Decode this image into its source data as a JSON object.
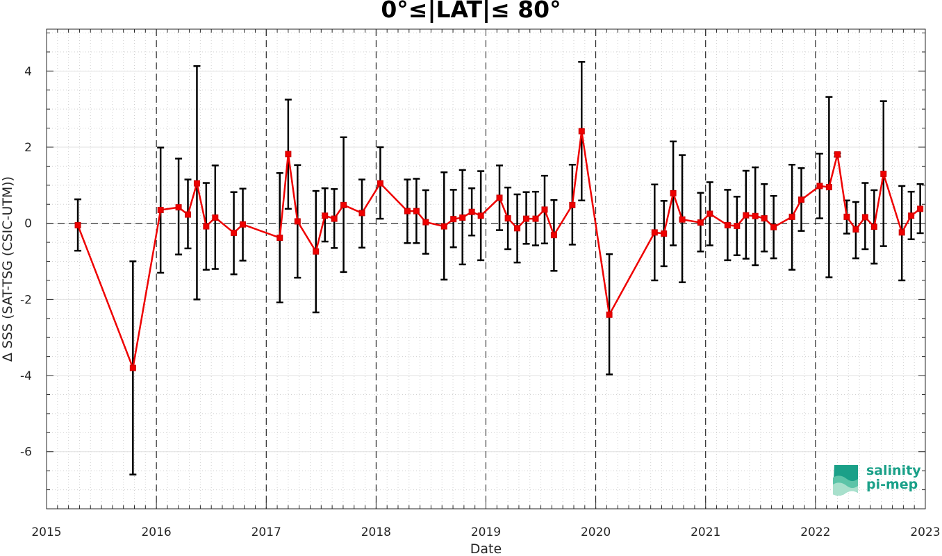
{
  "chart_data": {
    "type": "line",
    "title": "0°≤|LAT|≤ 80°",
    "xlabel": "Date",
    "ylabel": "Δ SSS (SAT-TSG (CSIC-UTM))",
    "xlim": [
      "2015-01-01",
      "2023-01-01"
    ],
    "ylim": [
      -7.5,
      5.1
    ],
    "x_tick_labels": [
      "2015",
      "2016",
      "2017",
      "2018",
      "2019",
      "2020",
      "2021",
      "2022",
      "2023"
    ],
    "y_tick_labels": [
      "-6",
      "-4",
      "-2",
      "0",
      "2",
      "4"
    ],
    "y_ticks": [
      -6,
      -4,
      -2,
      0,
      2,
      4
    ],
    "grid": true,
    "series": [
      {
        "color": "#ee0000",
        "errorbar_color": "#000000",
        "x": [
          "2015-04-15",
          "2015-10-15",
          "2016-01-15",
          "2016-03-15",
          "2016-04-15",
          "2016-05-15",
          "2016-06-15",
          "2016-07-15",
          "2016-09-15",
          "2016-10-15",
          "2017-02-15",
          "2017-03-15",
          "2017-04-15",
          "2017-06-15",
          "2017-07-15",
          "2017-08-15",
          "2017-09-15",
          "2017-11-15",
          "2018-01-15",
          "2018-04-15",
          "2018-05-15",
          "2018-06-15",
          "2018-08-15",
          "2018-09-15",
          "2018-10-15",
          "2018-11-15",
          "2018-12-15",
          "2019-02-15",
          "2019-03-15",
          "2019-04-15",
          "2019-05-15",
          "2019-06-15",
          "2019-07-15",
          "2019-08-15",
          "2019-10-15",
          "2019-11-15",
          "2020-02-15",
          "2020-07-15",
          "2020-08-15",
          "2020-09-15",
          "2020-10-15",
          "2020-12-15",
          "2021-01-15",
          "2021-03-15",
          "2021-04-15",
          "2021-05-15",
          "2021-06-15",
          "2021-07-15",
          "2021-08-15",
          "2021-10-15",
          "2021-11-15",
          "2022-01-15",
          "2022-02-15",
          "2022-03-15",
          "2022-04-15",
          "2022-05-15",
          "2022-06-15",
          "2022-07-15",
          "2022-08-15",
          "2022-10-15",
          "2022-11-15",
          "2022-12-15"
        ],
        "y": [
          -0.05,
          -3.8,
          0.35,
          0.42,
          0.23,
          1.05,
          -0.08,
          0.15,
          -0.25,
          -0.03,
          -0.38,
          1.82,
          0.05,
          -0.74,
          0.2,
          0.12,
          0.48,
          0.27,
          1.05,
          0.32,
          0.32,
          0.03,
          -0.08,
          0.11,
          0.15,
          0.3,
          0.2,
          0.67,
          0.13,
          -0.13,
          0.12,
          0.12,
          0.36,
          -0.31,
          0.48,
          2.42,
          -2.4,
          -0.24,
          -0.27,
          0.79,
          0.1,
          0.02,
          0.25,
          -0.05,
          -0.07,
          0.21,
          0.19,
          0.13,
          -0.1,
          0.17,
          0.62,
          0.98,
          0.95,
          1.81,
          0.17,
          -0.16,
          0.16,
          -0.09,
          1.3,
          -0.24,
          0.2,
          0.38
        ],
        "err_low": [
          -0.72,
          -6.6,
          -1.3,
          -0.82,
          -0.66,
          -2.0,
          -1.22,
          -1.2,
          -1.34,
          -0.98,
          -2.08,
          0.38,
          -1.43,
          -2.34,
          -0.48,
          -0.65,
          -1.28,
          -0.64,
          0.12,
          -0.52,
          -0.52,
          -0.8,
          -1.48,
          -0.63,
          -1.08,
          -0.32,
          -0.97,
          -0.18,
          -0.68,
          -1.03,
          -0.54,
          -0.58,
          -0.53,
          -1.25,
          -0.56,
          0.6,
          -3.97,
          -1.5,
          -1.13,
          -0.58,
          -1.55,
          -0.74,
          -0.58,
          -0.97,
          -0.84,
          -0.93,
          -1.1,
          -0.74,
          -0.92,
          -1.22,
          -0.2,
          0.13,
          -1.42,
          1.75,
          -0.27,
          -0.92,
          -0.68,
          -1.06,
          -0.6,
          -1.5,
          -0.42,
          -0.26
        ],
        "err_high": [
          0.63,
          -1.0,
          1.99,
          1.7,
          1.15,
          4.13,
          1.06,
          1.52,
          0.82,
          0.91,
          1.32,
          3.25,
          1.53,
          0.85,
          0.92,
          0.9,
          2.26,
          1.15,
          2.0,
          1.15,
          1.17,
          0.87,
          1.34,
          0.88,
          1.4,
          0.92,
          1.37,
          1.52,
          0.94,
          0.76,
          0.82,
          0.83,
          1.25,
          0.61,
          1.54,
          4.24,
          -0.81,
          1.02,
          0.59,
          2.15,
          1.79,
          0.8,
          1.08,
          0.88,
          0.7,
          1.38,
          1.47,
          1.03,
          0.72,
          1.54,
          1.45,
          1.83,
          3.32,
          1.84,
          0.6,
          0.56,
          1.06,
          0.87,
          3.21,
          0.98,
          0.83,
          1.03
        ]
      }
    ]
  },
  "logo": {
    "line1": "salinity",
    "line2": "pi-mep"
  }
}
